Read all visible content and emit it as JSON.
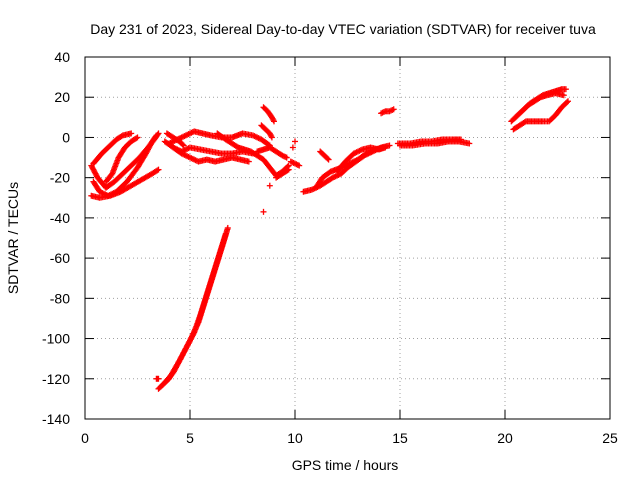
{
  "chart_data": {
    "type": "scatter",
    "title": "Day 231 of 2023, Sidereal Day-to-day VTEC variation (SDTVAR) for receiver tuva",
    "xlabel": "GPS time / hours",
    "ylabel": "SDTVAR / TECUs",
    "xlim": [
      0,
      25
    ],
    "ylim": [
      -140,
      40
    ],
    "x_ticks": [
      0,
      5,
      10,
      15,
      20,
      25
    ],
    "x_tick_labels": [
      "0",
      "5",
      "10",
      "15",
      "20",
      "25"
    ],
    "y_ticks": [
      -140,
      -120,
      -100,
      -80,
      -60,
      -40,
      -20,
      0,
      20,
      40
    ],
    "y_tick_labels": [
      "-140",
      "-120",
      "-100",
      "-80",
      "-60",
      "-40",
      "-20",
      "0",
      "20",
      "40"
    ],
    "grid": true,
    "marker": "plus",
    "color": "#ff0000",
    "tracks": [
      {
        "points": [
          [
            0.3,
            -14
          ],
          [
            0.6,
            -20
          ],
          [
            1.0,
            -25
          ],
          [
            1.4,
            -22
          ],
          [
            1.8,
            -18
          ],
          [
            2.2,
            -14
          ],
          [
            2.6,
            -10
          ],
          [
            3.0,
            -5
          ],
          [
            3.3,
            -1
          ],
          [
            3.5,
            2
          ]
        ]
      },
      {
        "points": [
          [
            0.4,
            -22
          ],
          [
            0.7,
            -27
          ],
          [
            1.1,
            -29
          ],
          [
            1.5,
            -27
          ],
          [
            2.0,
            -22
          ],
          [
            2.5,
            -15
          ],
          [
            2.9,
            -8
          ],
          [
            3.2,
            -2
          ],
          [
            3.4,
            1
          ]
        ]
      },
      {
        "points": [
          [
            0.3,
            -29
          ],
          [
            0.7,
            -30
          ],
          [
            1.2,
            -29
          ],
          [
            1.7,
            -27
          ],
          [
            2.2,
            -24
          ],
          [
            2.7,
            -21
          ],
          [
            3.2,
            -18
          ],
          [
            3.5,
            -16
          ]
        ]
      },
      {
        "points": [
          [
            0.4,
            -13
          ],
          [
            0.8,
            -8
          ],
          [
            1.2,
            -4
          ],
          [
            1.5,
            -1
          ],
          [
            1.8,
            1
          ],
          [
            2.2,
            2
          ]
        ]
      },
      {
        "points": [
          [
            1.0,
            -22
          ],
          [
            1.3,
            -18
          ],
          [
            1.6,
            -10
          ],
          [
            1.9,
            -5
          ],
          [
            2.2,
            -2
          ],
          [
            2.5,
            0
          ]
        ]
      },
      {
        "points": [
          [
            4.0,
            -3
          ],
          [
            4.4,
            -1
          ],
          [
            4.8,
            1
          ],
          [
            5.2,
            3
          ],
          [
            5.6,
            2
          ],
          [
            6.0,
            1
          ],
          [
            6.5,
            0
          ],
          [
            7.0,
            0
          ],
          [
            7.5,
            2
          ],
          [
            8.0,
            1
          ],
          [
            8.4,
            -1
          ],
          [
            8.8,
            -4
          ]
        ]
      },
      {
        "points": [
          [
            3.8,
            -2
          ],
          [
            4.2,
            -5
          ],
          [
            4.6,
            -7
          ],
          [
            5.0,
            -5
          ],
          [
            5.5,
            -6
          ],
          [
            6.0,
            -7
          ],
          [
            6.5,
            -8
          ],
          [
            7.0,
            -8
          ],
          [
            7.5,
            -7
          ],
          [
            8.0,
            -8
          ]
        ]
      },
      {
        "points": [
          [
            4.2,
            -5
          ],
          [
            4.6,
            -8
          ],
          [
            5.0,
            -10
          ],
          [
            5.4,
            -12
          ],
          [
            5.8,
            -11
          ],
          [
            6.2,
            -12
          ],
          [
            6.6,
            -11
          ],
          [
            7.0,
            -10
          ],
          [
            7.4,
            -11
          ],
          [
            7.8,
            -12
          ]
        ]
      },
      {
        "points": [
          [
            3.9,
            2
          ],
          [
            4.2,
            0
          ],
          [
            4.5,
            -2
          ],
          [
            4.7,
            -4
          ]
        ]
      },
      {
        "points": [
          [
            6.3,
            2
          ],
          [
            6.7,
            -1
          ],
          [
            7.0,
            -3
          ],
          [
            7.3,
            -5
          ],
          [
            7.6,
            -6
          ],
          [
            7.9,
            -7
          ],
          [
            8.2,
            -9
          ],
          [
            8.5,
            -11
          ],
          [
            8.8,
            -15
          ],
          [
            9.1,
            -19
          ],
          [
            9.4,
            -17
          ],
          [
            9.7,
            -14
          ]
        ]
      },
      {
        "points": [
          [
            8.2,
            -7
          ],
          [
            8.5,
            -6
          ],
          [
            8.8,
            -5
          ],
          [
            9.1,
            -7
          ],
          [
            9.4,
            -9
          ],
          [
            9.6,
            -10
          ]
        ]
      },
      {
        "points": [
          [
            8.4,
            6
          ],
          [
            8.6,
            4
          ],
          [
            8.8,
            2
          ],
          [
            8.9,
            0
          ]
        ]
      },
      {
        "points": [
          [
            8.5,
            15
          ],
          [
            8.7,
            13
          ],
          [
            8.9,
            10
          ],
          [
            9.0,
            8
          ]
        ]
      },
      {
        "points": [
          [
            9.1,
            -20
          ],
          [
            9.4,
            -18
          ],
          [
            9.7,
            -16
          ]
        ]
      },
      {
        "points": [
          [
            9.8,
            -12
          ],
          [
            10.0,
            -13
          ],
          [
            10.2,
            -14
          ]
        ]
      },
      {
        "points": [
          [
            10.4,
            -27
          ],
          [
            10.8,
            -26
          ],
          [
            11.2,
            -24
          ],
          [
            11.5,
            -22
          ],
          [
            11.8,
            -20
          ],
          [
            12.2,
            -18
          ],
          [
            12.5,
            -15
          ],
          [
            12.9,
            -12
          ],
          [
            13.3,
            -9
          ],
          [
            13.7,
            -7
          ],
          [
            14.1,
            -5
          ],
          [
            14.5,
            -4
          ]
        ]
      },
      {
        "points": [
          [
            11.0,
            -25
          ],
          [
            11.3,
            -20
          ],
          [
            11.7,
            -17
          ],
          [
            12.2,
            -15
          ],
          [
            12.6,
            -13
          ],
          [
            13.0,
            -11
          ],
          [
            13.4,
            -8
          ],
          [
            13.8,
            -6
          ],
          [
            14.2,
            -5
          ]
        ]
      },
      {
        "points": [
          [
            12.0,
            -17
          ],
          [
            12.4,
            -12
          ],
          [
            12.8,
            -8
          ],
          [
            13.2,
            -6
          ],
          [
            13.6,
            -5
          ],
          [
            14.0,
            -6
          ],
          [
            14.3,
            -5
          ]
        ]
      },
      {
        "points": [
          [
            11.2,
            -7
          ],
          [
            11.4,
            -9
          ],
          [
            11.6,
            -11
          ]
        ]
      },
      {
        "points": [
          [
            14.1,
            12
          ],
          [
            14.3,
            13
          ],
          [
            14.5,
            13
          ],
          [
            14.7,
            14
          ]
        ]
      },
      {
        "points": [
          [
            14.9,
            -3
          ],
          [
            15.5,
            -3
          ],
          [
            16.0,
            -2
          ],
          [
            16.5,
            -2
          ],
          [
            17.0,
            -1
          ],
          [
            17.5,
            -1
          ],
          [
            17.9,
            -1
          ]
        ]
      },
      {
        "points": [
          [
            15.0,
            -4
          ],
          [
            15.6,
            -4
          ],
          [
            16.2,
            -3
          ],
          [
            16.8,
            -3
          ],
          [
            17.3,
            -2
          ],
          [
            17.8,
            -2
          ],
          [
            18.3,
            -3
          ]
        ]
      },
      {
        "points": [
          [
            20.4,
            4
          ],
          [
            20.7,
            6
          ],
          [
            21.0,
            8
          ],
          [
            21.4,
            8
          ],
          [
            21.8,
            8
          ],
          [
            22.1,
            8
          ],
          [
            22.4,
            11
          ],
          [
            22.7,
            15
          ],
          [
            23.0,
            18
          ]
        ]
      },
      {
        "points": [
          [
            20.3,
            8
          ],
          [
            20.6,
            11
          ],
          [
            20.9,
            14
          ],
          [
            21.2,
            17
          ],
          [
            21.5,
            19
          ],
          [
            21.8,
            21
          ],
          [
            22.1,
            22
          ],
          [
            22.4,
            23
          ],
          [
            22.7,
            24
          ],
          [
            22.9,
            24
          ]
        ]
      },
      {
        "points": [
          [
            20.5,
            10
          ],
          [
            20.8,
            13
          ],
          [
            21.1,
            16
          ],
          [
            21.4,
            18
          ],
          [
            21.7,
            20
          ],
          [
            22.0,
            21
          ],
          [
            22.4,
            22
          ],
          [
            22.8,
            21
          ]
        ]
      },
      {
        "points": [
          [
            3.5,
            -125
          ],
          [
            4.0,
            -120
          ],
          [
            4.5,
            -111
          ],
          [
            5.0,
            -101
          ],
          [
            5.4,
            -92
          ],
          [
            5.7,
            -82
          ],
          [
            6.0,
            -72
          ],
          [
            6.3,
            -62
          ],
          [
            6.6,
            -52
          ],
          [
            6.8,
            -45
          ]
        ]
      },
      {
        "points": [
          [
            3.7,
            -123
          ],
          [
            4.2,
            -117
          ],
          [
            4.7,
            -107
          ],
          [
            5.2,
            -97
          ],
          [
            5.5,
            -88
          ],
          [
            5.8,
            -78
          ],
          [
            6.1,
            -68
          ],
          [
            6.4,
            -58
          ],
          [
            6.7,
            -48
          ]
        ]
      },
      {
        "points": [
          [
            3.4,
            -120
          ],
          [
            3.5,
            -120
          ]
        ]
      },
      {
        "points": [
          [
            8.5,
            -37
          ]
        ]
      },
      {
        "points": [
          [
            8.8,
            -24
          ]
        ]
      },
      {
        "points": [
          [
            9.6,
            -10
          ]
        ]
      },
      {
        "points": [
          [
            9.9,
            -5
          ]
        ]
      },
      {
        "points": [
          [
            10.0,
            -2
          ]
        ]
      }
    ]
  }
}
